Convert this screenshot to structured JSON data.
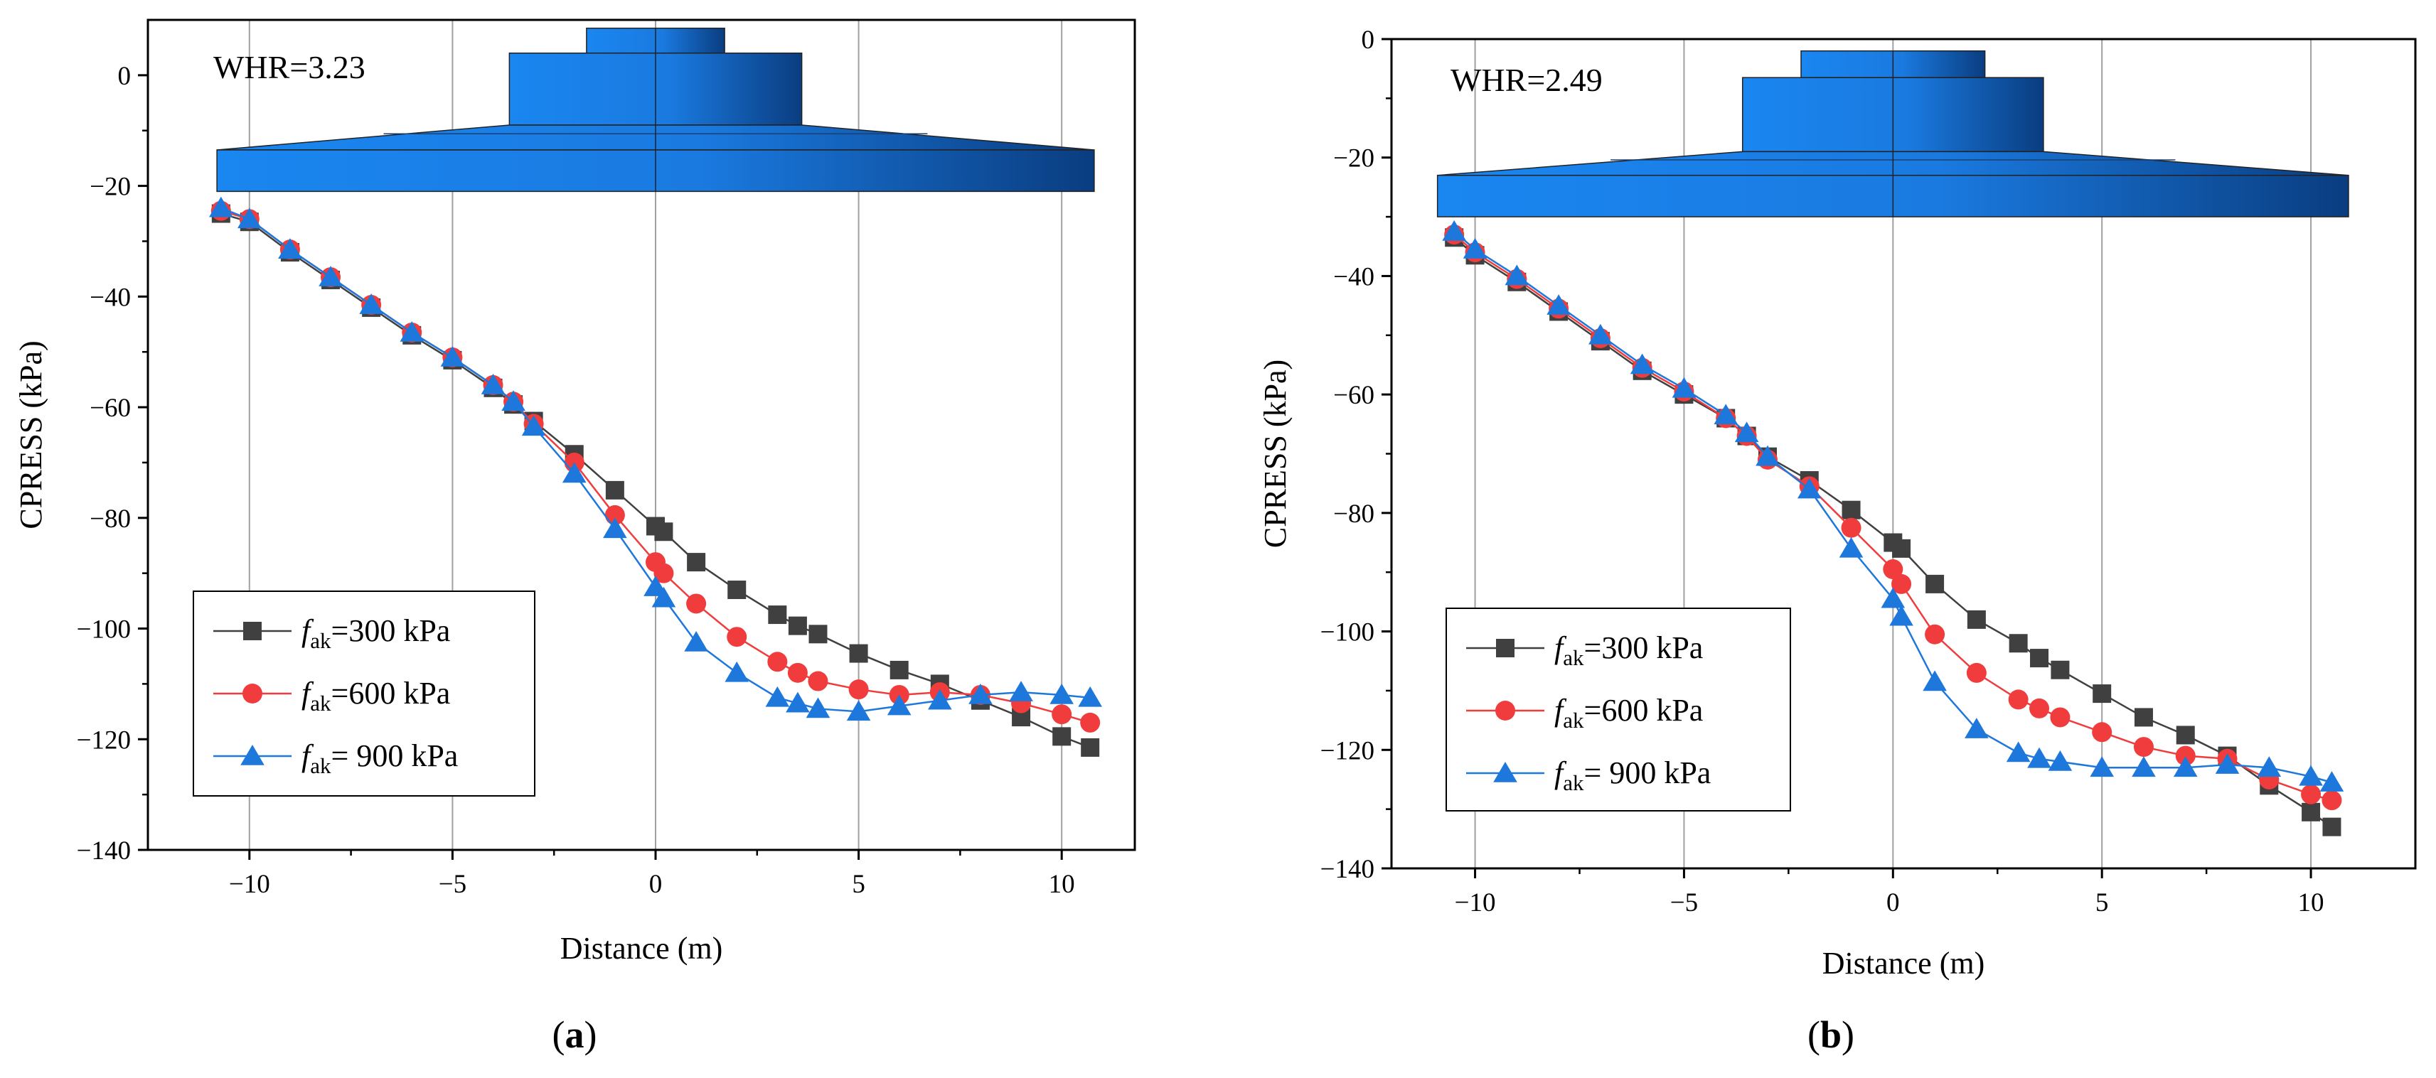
{
  "chart_data": [
    {
      "type": "line",
      "panel_label": "(a)",
      "panel_letter": "a",
      "annotation": "WHR=3.23",
      "xlabel": "Distance (m)",
      "ylabel": "CPRESS (kPa)",
      "xlim": [
        -12.5,
        11.8
      ],
      "ylim": [
        -140,
        10
      ],
      "xticks": [
        -10,
        -5,
        0,
        5,
        10
      ],
      "yticks": [
        0,
        -20,
        -40,
        -60,
        -80,
        -100,
        -120,
        -140
      ],
      "x_ticklabels": [
        "−10",
        "−5",
        "0",
        "5",
        "10"
      ],
      "y_ticklabels": [
        "0",
        "−20",
        "−40",
        "−60",
        "−80",
        "−100",
        "−120",
        "−140"
      ],
      "grid": "vertical",
      "legend_position": "bottom-left",
      "foundation": {
        "top": 8.5,
        "upper_bottom": 4,
        "lower_top": -9,
        "slab_top": -13.5,
        "slab_bottom": -21,
        "col_half": 1.7,
        "ped_half": 3.6,
        "base_half": 10.8
      },
      "series": [
        {
          "name": "fak=300 kPa",
          "label_main": "f",
          "label_sub": "ak",
          "label_rest": "=300 kPa",
          "color": "#404040",
          "marker": "square",
          "x": [
            -10.7,
            -10,
            -9,
            -8,
            -7,
            -6,
            -5,
            -4,
            -3.5,
            -3,
            -2,
            -1,
            0,
            0.2,
            1,
            2,
            3,
            3.5,
            4,
            5,
            6,
            7,
            8,
            9,
            10,
            10.7
          ],
          "y": [
            -25,
            -26.5,
            -32,
            -37,
            -42,
            -47,
            -51.5,
            -56.5,
            -59.5,
            -62.5,
            -68.5,
            -75,
            -81.5,
            -82.5,
            -88,
            -93,
            -97.5,
            -99.5,
            -101,
            -104.5,
            -107.5,
            -110,
            -113,
            -116,
            -119.5,
            -121.5
          ]
        },
        {
          "name": "fak=600 kPa",
          "label_main": "f",
          "label_sub": "ak",
          "label_rest": "=600 kPa",
          "color": "#f03c3c",
          "marker": "circle",
          "x": [
            -10.7,
            -10,
            -9,
            -8,
            -7,
            -6,
            -5,
            -4,
            -3.5,
            -3,
            -2,
            -1,
            0,
            0.2,
            1,
            2,
            3,
            3.5,
            4,
            5,
            6,
            7,
            8,
            9,
            10,
            10.7
          ],
          "y": [
            -24.5,
            -26,
            -31.5,
            -36.5,
            -41.5,
            -46.5,
            -51,
            -56,
            -59,
            -63,
            -70,
            -79.5,
            -88,
            -90,
            -95.5,
            -101.5,
            -106,
            -108,
            -109.5,
            -111,
            -112,
            -111.5,
            -112,
            -113.5,
            -115.5,
            -117
          ]
        },
        {
          "name": "fak= 900 kPa",
          "label_main": "f",
          "label_sub": "ak",
          "label_rest": "= 900 kPa",
          "color": "#1e78dc",
          "marker": "triangle",
          "x": [
            -10.7,
            -10,
            -9,
            -8,
            -7,
            -6,
            -5,
            -4,
            -3.5,
            -3,
            -2,
            -1,
            0,
            0.2,
            1,
            2,
            3,
            3.5,
            4,
            5,
            6,
            7,
            8,
            9,
            10,
            10.7
          ],
          "y": [
            -24,
            -26,
            -31.5,
            -36.5,
            -41.5,
            -46.5,
            -51,
            -56,
            -59,
            -63.5,
            -72,
            -82,
            -92.5,
            -94.5,
            -102.5,
            -108,
            -112.5,
            -113.5,
            -114.5,
            -115,
            -114,
            -113,
            -112,
            -111.5,
            -112,
            -112.5
          ]
        }
      ]
    },
    {
      "type": "line",
      "panel_label": "(b)",
      "panel_letter": "b",
      "annotation": "WHR=2.49",
      "xlabel": "Distance (m)",
      "ylabel": "CPRESS (kPa)",
      "xlim": [
        -12,
        12.5
      ],
      "ylim": [
        -140,
        0
      ],
      "xticks": [
        -10,
        -5,
        0,
        5,
        10
      ],
      "yticks": [
        0,
        -20,
        -40,
        -60,
        -80,
        -100,
        -120,
        -140
      ],
      "x_ticklabels": [
        "−10",
        "−5",
        "0",
        "5",
        "10"
      ],
      "y_ticklabels": [
        "0",
        "−20",
        "−40",
        "−60",
        "−80",
        "−100",
        "−120",
        "−140"
      ],
      "grid": "vertical",
      "legend_position": "bottom-left",
      "foundation": {
        "top": -2,
        "upper_bottom": -6.5,
        "lower_top": -19,
        "slab_top": -23,
        "slab_bottom": -30,
        "col_half": 2.2,
        "ped_half": 3.6,
        "base_half": 10.9
      },
      "series": [
        {
          "name": "fak=300 kPa",
          "label_main": "f",
          "label_sub": "ak",
          "label_rest": "=300 kPa",
          "color": "#404040",
          "marker": "square",
          "x": [
            -10.5,
            -10,
            -9,
            -8,
            -7,
            -6,
            -5,
            -4,
            -3.5,
            -3,
            -2,
            -1,
            0,
            0.2,
            1,
            2,
            3,
            3.5,
            4,
            5,
            6,
            7,
            8,
            9,
            10,
            10.5
          ],
          "y": [
            -33.5,
            -36.5,
            -41,
            -46,
            -51,
            -56,
            -60,
            -64,
            -67,
            -70.5,
            -74.5,
            -79.5,
            -85,
            -86,
            -92,
            -98,
            -102,
            -104.5,
            -106.5,
            -110.5,
            -114.5,
            -117.5,
            -121,
            -126,
            -130.5,
            -133
          ]
        },
        {
          "name": "fak=600 kPa",
          "label_main": "f",
          "label_sub": "ak",
          "label_rest": "=600 kPa",
          "color": "#f03c3c",
          "marker": "circle",
          "x": [
            -10.5,
            -10,
            -9,
            -8,
            -7,
            -6,
            -5,
            -4,
            -3.5,
            -3,
            -2,
            -1,
            0,
            0.2,
            1,
            2,
            3,
            3.5,
            4,
            5,
            6,
            7,
            8,
            9,
            10,
            10.5
          ],
          "y": [
            -33,
            -36,
            -40.5,
            -45.5,
            -50.5,
            -55.5,
            -59.5,
            -64,
            -67,
            -71,
            -75.5,
            -82.5,
            -89.5,
            -92,
            -100.5,
            -107,
            -111.5,
            -113,
            -114.5,
            -117,
            -119.5,
            -121,
            -121.5,
            -125,
            -127.5,
            -128.5
          ]
        },
        {
          "name": "fak= 900 kPa",
          "label_main": "f",
          "label_sub": "ak",
          "label_rest": "= 900 kPa",
          "color": "#1e78dc",
          "marker": "triangle",
          "x": [
            -10.5,
            -10,
            -9,
            -8,
            -7,
            -6,
            -5,
            -4,
            -3.5,
            -3,
            -2,
            -1,
            0,
            0.2,
            1,
            2,
            3,
            3.5,
            4,
            5,
            6,
            7,
            8,
            9,
            10,
            10.5
          ],
          "y": [
            -32.5,
            -35.5,
            -40,
            -45,
            -50,
            -55,
            -59,
            -63.5,
            -66.5,
            -70.5,
            -76,
            -86,
            -94.5,
            -97.5,
            -108.5,
            -116.5,
            -120.5,
            -121.5,
            -122,
            -123,
            -123,
            -123,
            -122.5,
            -123,
            -124.5,
            -125.5
          ]
        }
      ]
    }
  ]
}
